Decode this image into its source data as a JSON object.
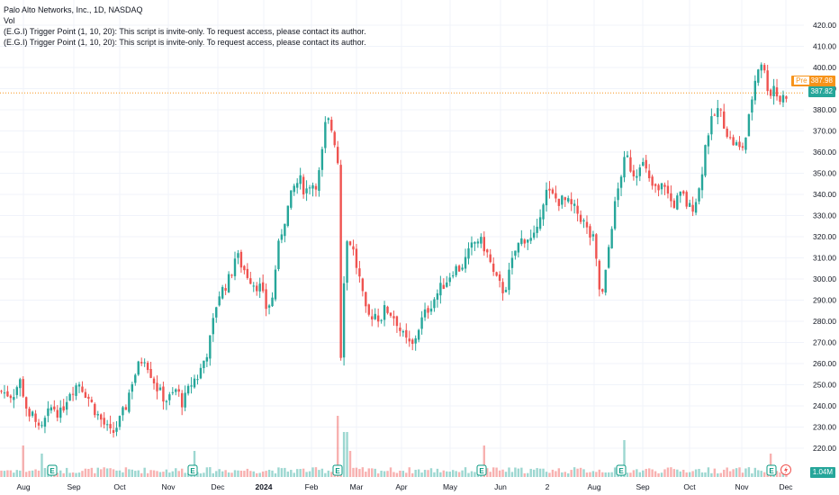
{
  "legend": {
    "title": "Palo Alto Networks, Inc., 1D, NASDAQ",
    "vol_label": "Vol",
    "indicator_1": "(E.G.I) Trigger Point  (1, 10, 20): This script is invite-only. To request access, please contact its author.",
    "indicator_2": "(E.G.I) Trigger Point  (1, 10, 20): This script is invite-only. To request access, please contact its author."
  },
  "tags": {
    "pre_label": "Pre",
    "pre_price": "387.98",
    "last_price": "387.82",
    "volume": "1.04M"
  },
  "colors": {
    "up": "#26a69a",
    "down": "#ef5350",
    "pre": "#f7931a",
    "grid": "#f0f3fa",
    "axis_text": "#131722"
  },
  "icons": {
    "earnings": "earnings-marker-icon",
    "dividend": "lightning-icon"
  },
  "chart_data": {
    "type": "candlestick",
    "y_ticks": [
      220,
      230,
      240,
      250,
      260,
      270,
      280,
      290,
      300,
      310,
      320,
      330,
      340,
      350,
      360,
      370,
      380,
      390,
      400,
      410,
      420
    ],
    "ylim": [
      214,
      424
    ],
    "x_labels": [
      "Aug",
      "Sep",
      "Oct",
      "Nov",
      "Dec",
      "2024",
      "Feb",
      "Mar",
      "Apr",
      "May",
      "Jun",
      "2",
      "Aug",
      "Sep",
      "Oct",
      "Nov",
      "Dec"
    ],
    "price_path": [
      [
        0,
        247
      ],
      [
        14,
        245
      ],
      [
        22,
        252
      ],
      [
        27,
        244
      ],
      [
        33,
        232
      ],
      [
        38,
        238
      ],
      [
        44,
        226
      ],
      [
        50,
        233
      ],
      [
        58,
        240
      ],
      [
        67,
        236
      ],
      [
        77,
        247
      ],
      [
        88,
        251
      ],
      [
        98,
        244
      ],
      [
        108,
        236
      ],
      [
        116,
        231
      ],
      [
        124,
        226
      ],
      [
        133,
        233
      ],
      [
        140,
        240
      ],
      [
        146,
        251
      ],
      [
        153,
        258
      ],
      [
        160,
        264
      ],
      [
        168,
        255
      ],
      [
        176,
        247
      ],
      [
        184,
        243
      ],
      [
        190,
        244
      ],
      [
        196,
        248
      ],
      [
        203,
        241
      ],
      [
        209,
        247
      ],
      [
        214,
        252
      ],
      [
        220,
        254
      ],
      [
        226,
        261
      ],
      [
        232,
        268
      ],
      [
        237,
        280
      ],
      [
        242,
        292
      ],
      [
        249,
        296
      ],
      [
        256,
        301
      ],
      [
        262,
        312
      ],
      [
        269,
        306
      ],
      [
        275,
        302
      ],
      [
        282,
        298
      ],
      [
        289,
        296
      ],
      [
        296,
        286
      ],
      [
        303,
        291
      ],
      [
        307,
        310
      ],
      [
        314,
        325
      ],
      [
        320,
        334
      ],
      [
        326,
        343
      ],
      [
        333,
        347
      ],
      [
        339,
        341
      ],
      [
        345,
        346
      ],
      [
        350,
        344
      ],
      [
        356,
        352
      ],
      [
        361,
        372
      ],
      [
        366,
        375
      ],
      [
        371,
        366
      ],
      [
        375,
        362
      ],
      [
        378,
        258
      ],
      [
        382,
        300
      ],
      [
        386,
        320
      ],
      [
        391,
        316
      ],
      [
        396,
        306
      ],
      [
        401,
        297
      ],
      [
        405,
        285
      ],
      [
        410,
        282
      ],
      [
        416,
        284
      ],
      [
        422,
        281
      ],
      [
        428,
        286
      ],
      [
        434,
        284
      ],
      [
        440,
        281
      ],
      [
        446,
        274
      ],
      [
        452,
        270
      ],
      [
        458,
        268
      ],
      [
        464,
        276
      ],
      [
        470,
        282
      ],
      [
        477,
        287
      ],
      [
        484,
        292
      ],
      [
        490,
        296
      ],
      [
        497,
        300
      ],
      [
        504,
        305
      ],
      [
        511,
        305
      ],
      [
        517,
        309
      ],
      [
        524,
        315
      ],
      [
        530,
        319
      ],
      [
        537,
        316
      ],
      [
        543,
        310
      ],
      [
        549,
        301
      ],
      [
        555,
        297
      ],
      [
        560,
        294
      ],
      [
        566,
        303
      ],
      [
        572,
        313
      ],
      [
        578,
        318
      ],
      [
        585,
        320
      ],
      [
        591,
        318
      ],
      [
        597,
        322
      ],
      [
        601,
        335
      ],
      [
        607,
        341
      ],
      [
        614,
        339
      ],
      [
        620,
        337
      ],
      [
        627,
        337
      ],
      [
        633,
        335
      ],
      [
        640,
        332
      ],
      [
        647,
        328
      ],
      [
        654,
        321
      ],
      [
        660,
        318
      ],
      [
        665,
        296
      ],
      [
        669,
        292
      ],
      [
        673,
        303
      ],
      [
        677,
        318
      ],
      [
        681,
        330
      ],
      [
        686,
        341
      ],
      [
        691,
        352
      ],
      [
        696,
        358
      ],
      [
        701,
        352
      ],
      [
        706,
        349
      ],
      [
        711,
        356
      ],
      [
        716,
        353
      ],
      [
        721,
        346
      ],
      [
        726,
        343
      ],
      [
        732,
        341
      ],
      [
        738,
        346
      ],
      [
        743,
        338
      ],
      [
        748,
        335
      ],
      [
        753,
        338
      ],
      [
        758,
        340
      ],
      [
        763,
        335
      ],
      [
        768,
        333
      ],
      [
        773,
        338
      ],
      [
        778,
        344
      ],
      [
        782,
        360
      ],
      [
        787,
        370
      ],
      [
        792,
        376
      ],
      [
        797,
        380
      ],
      [
        802,
        377
      ],
      [
        807,
        370
      ],
      [
        812,
        365
      ],
      [
        817,
        364
      ],
      [
        822,
        361
      ],
      [
        827,
        364
      ],
      [
        831,
        373
      ],
      [
        835,
        385
      ],
      [
        840,
        397
      ],
      [
        845,
        404
      ],
      [
        850,
        396
      ],
      [
        855,
        387
      ],
      [
        860,
        392
      ],
      [
        865,
        384
      ],
      [
        870,
        386
      ],
      [
        875,
        388
      ]
    ],
    "earnings_marker_x": [
      58,
      214,
      375,
      535,
      690,
      857
    ],
    "dividend_marker_x": [
      873
    ],
    "volume_spikes": [
      [
        27,
        0.45
      ],
      [
        46,
        0.3
      ],
      [
        215,
        0.35
      ],
      [
        376,
        1.0
      ],
      [
        384,
        0.7
      ],
      [
        390,
        0.35
      ],
      [
        537,
        0.45
      ],
      [
        693,
        0.55
      ],
      [
        855,
        0.3
      ]
    ]
  }
}
